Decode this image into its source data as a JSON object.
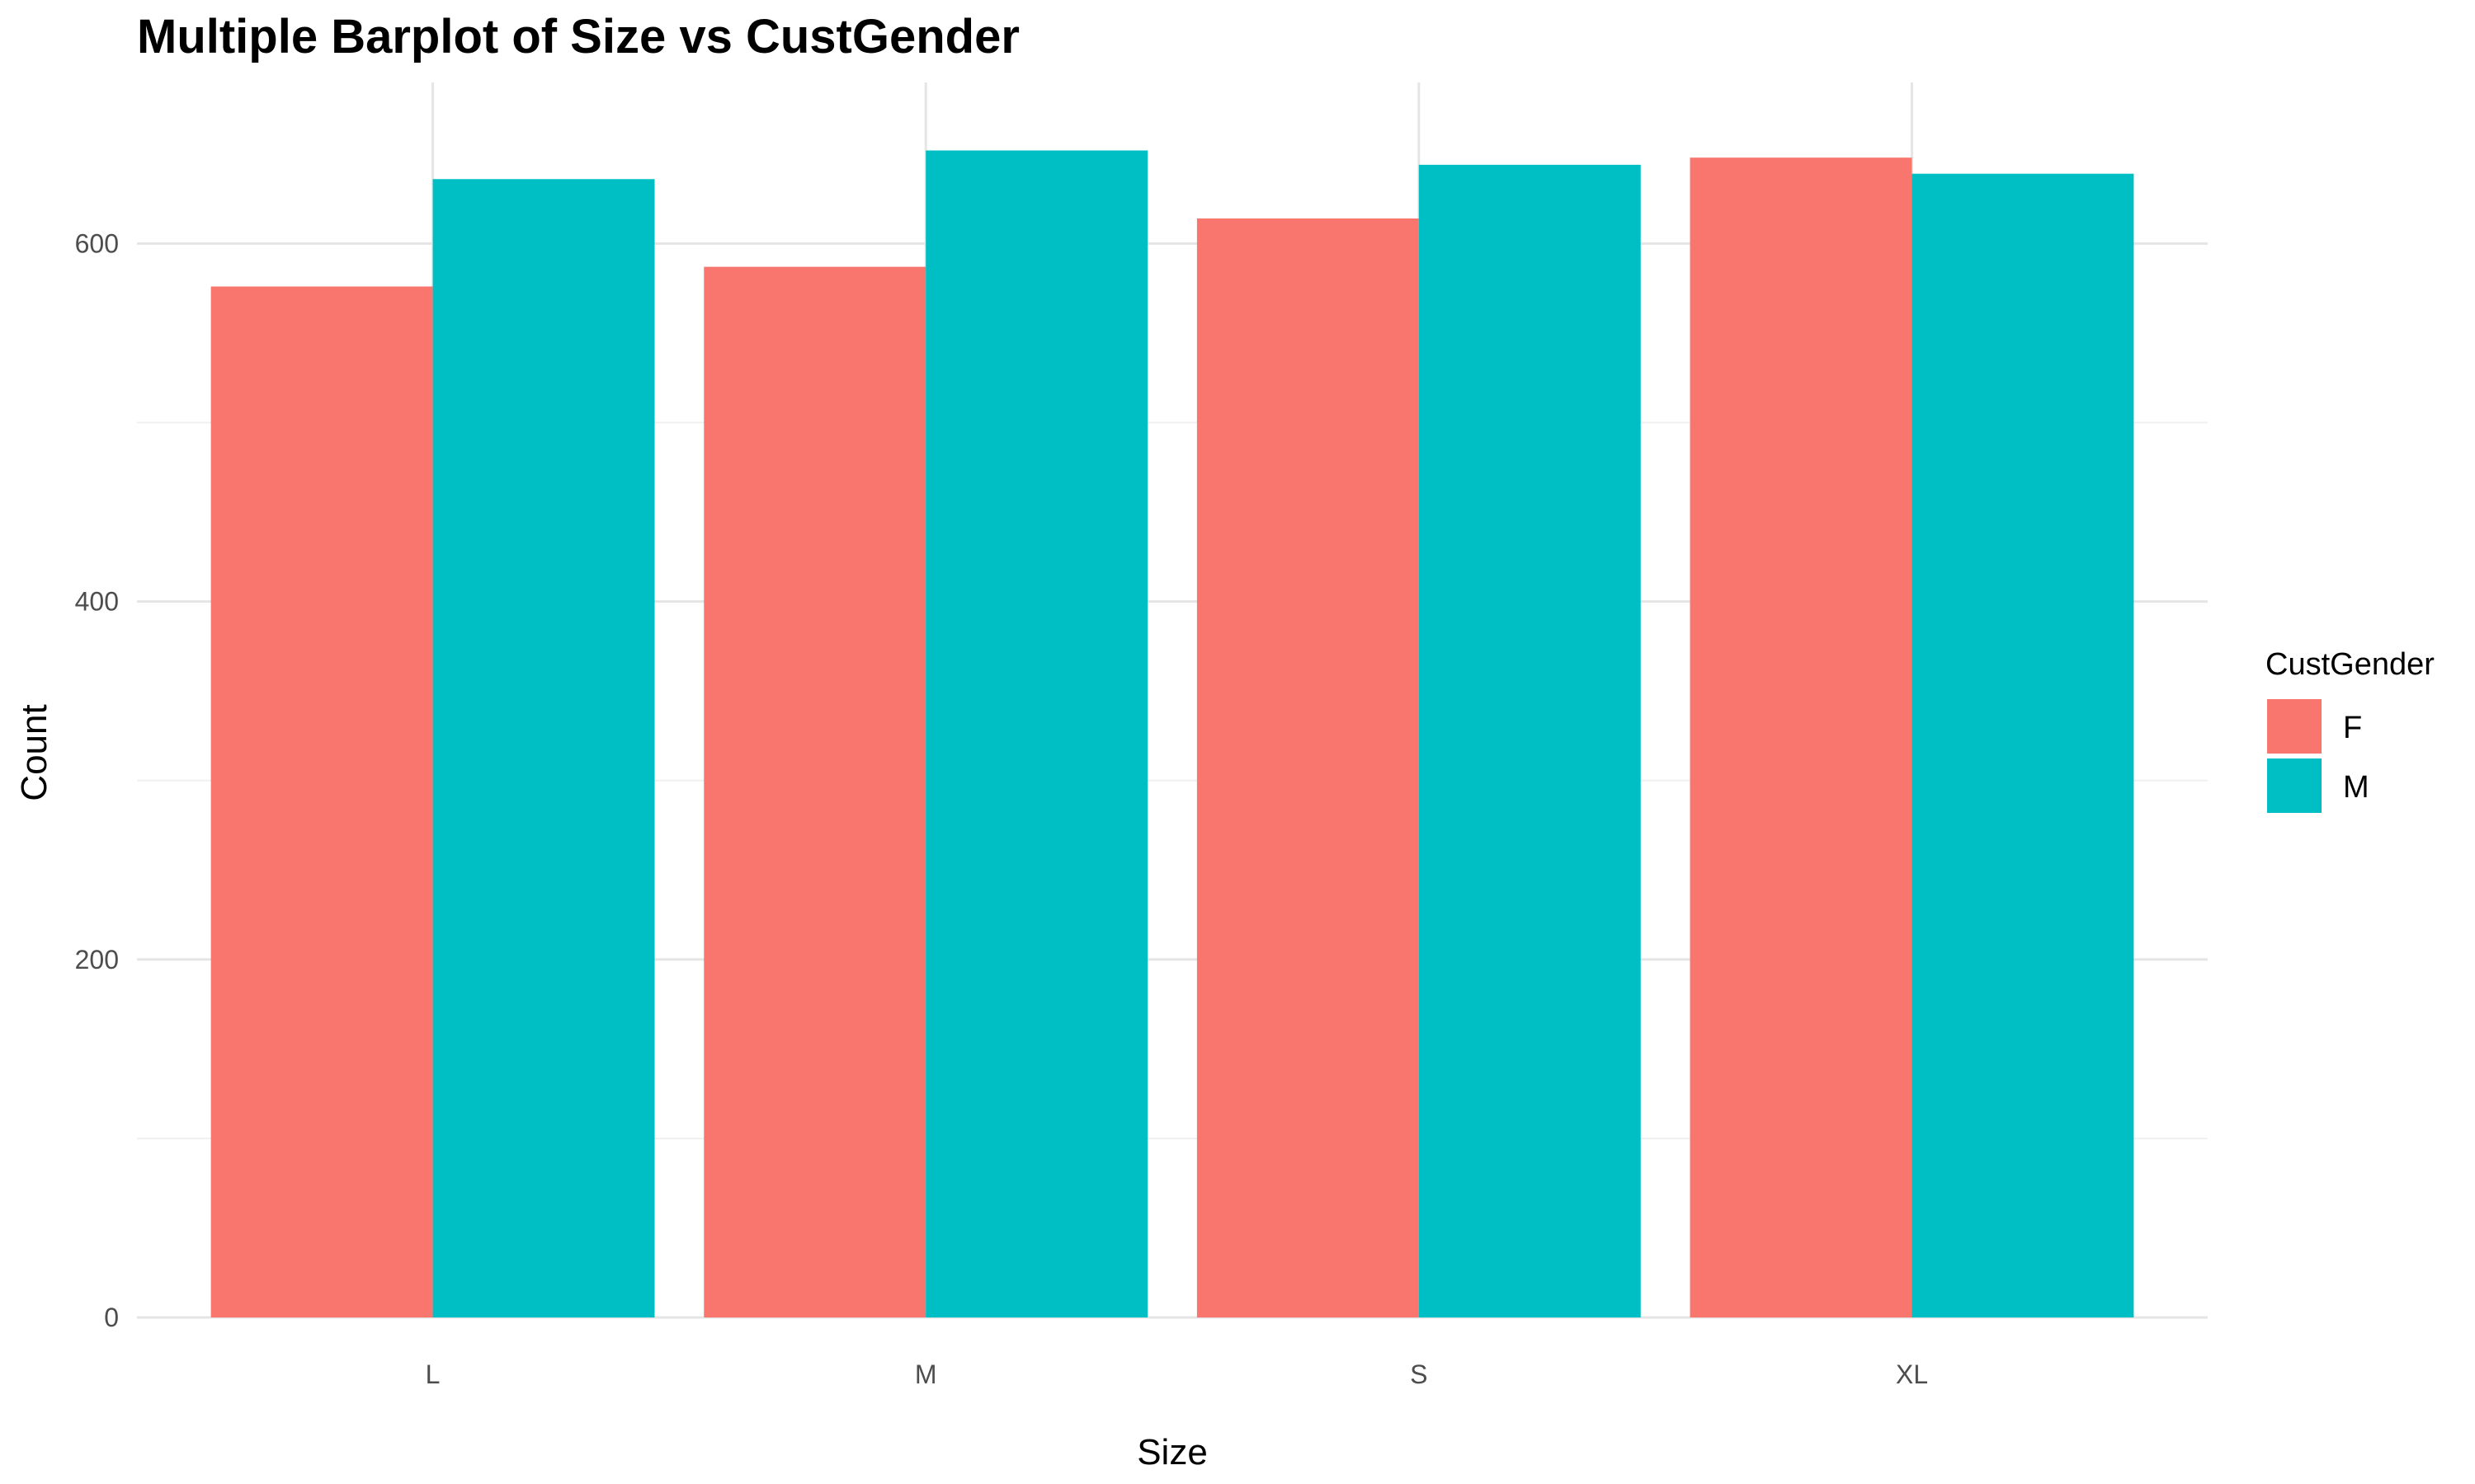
{
  "chart_data": {
    "type": "bar",
    "title": "Multiple Barplot of Size vs CustGender",
    "xlabel": "Size",
    "ylabel": "Count",
    "categories": [
      "L",
      "M",
      "S",
      "XL"
    ],
    "series": [
      {
        "name": "F",
        "color": "#F8766D",
        "values": [
          576,
          587,
          614,
          648
        ]
      },
      {
        "name": "M",
        "color": "#00BFC4",
        "values": [
          636,
          652,
          644,
          639
        ]
      }
    ],
    "ylim": [
      0,
      690
    ],
    "yticks": [
      0,
      200,
      400,
      600
    ],
    "ytick_labels": [
      "0",
      "200",
      "400",
      "600"
    ],
    "legend": {
      "title": "CustGender",
      "placement": "right"
    },
    "grid": true
  }
}
